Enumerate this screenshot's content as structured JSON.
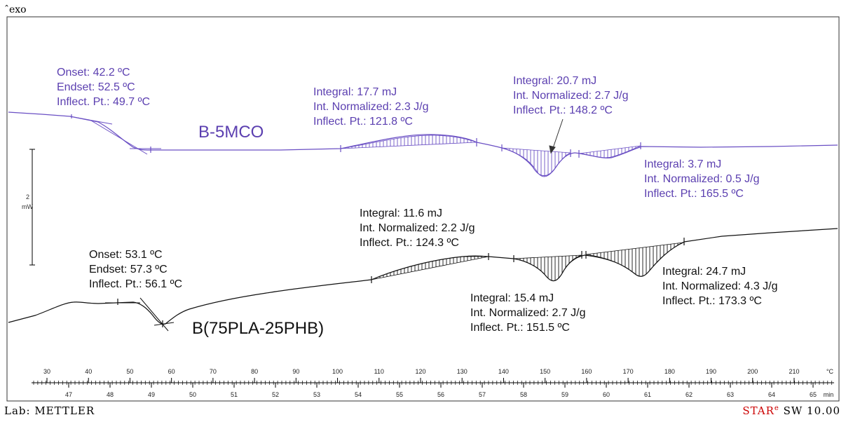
{
  "header": {
    "exo_label": "exo"
  },
  "scale_bar": {
    "value": "2",
    "unit": "mW"
  },
  "chart_data": {
    "type": "line",
    "xlabel_temperature_unit": "°C",
    "xlabel_time_unit": "min",
    "temperature_ticks": [
      30,
      40,
      50,
      60,
      70,
      80,
      90,
      100,
      110,
      120,
      130,
      140,
      150,
      160,
      170,
      180,
      190,
      200,
      210
    ],
    "time_ticks": [
      47,
      48,
      49,
      50,
      51,
      52,
      53,
      54,
      55,
      56,
      57,
      58,
      59,
      60,
      61,
      62,
      63,
      64,
      65
    ],
    "series": [
      {
        "name": "B-5MCO",
        "color": "#6a4fc4"
      },
      {
        "name": "B(75PLA-25PHB)",
        "color": "#111111"
      }
    ],
    "annotations": {
      "purple_transition": {
        "onset": "Onset: 42.2 ºC",
        "endset": "Endset: 52.5 ºC",
        "inflect": "Inflect. Pt.: 49.7 ºC"
      },
      "purple_peak1": {
        "integral": "Integral: 17.7 mJ",
        "normalized": "Int. Normalized: 2.3 J/g",
        "inflect": "Inflect. Pt.: 121.8 ºC"
      },
      "purple_peak2": {
        "integral": "Integral: 20.7 mJ",
        "normalized": "Int. Normalized: 2.7 J/g",
        "inflect": "Inflect. Pt.: 148.2 ºC"
      },
      "purple_peak3": {
        "integral": "Integral: 3.7 mJ",
        "normalized": "Int. Normalized: 0.5 J/g",
        "inflect": "Inflect. Pt.: 165.5 ºC"
      },
      "black_transition": {
        "onset": "Onset: 53.1 ºC",
        "endset": "Endset: 57.3 ºC",
        "inflect": "Inflect. Pt.: 56.1 ºC"
      },
      "black_peak1": {
        "integral": "Integral: 11.6 mJ",
        "normalized": "Int. Normalized: 2.2 J/g",
        "inflect": "Inflect. Pt.: 124.3 ºC"
      },
      "black_peak2": {
        "integral": "Integral: 15.4 mJ",
        "normalized": "Int. Normalized: 2.7 J/g",
        "inflect": "Inflect. Pt.: 151.5 ºC"
      },
      "black_peak3": {
        "integral": "Integral: 24.7 mJ",
        "normalized": "Int. Normalized: 4.3 J/g",
        "inflect": "Inflect. Pt.: 173.3 ºC"
      }
    }
  },
  "footer": {
    "lab": "Lab: METTLER",
    "star_prefix": "STAR",
    "star_sup": "e",
    "star_suffix": " SW  10.00"
  }
}
